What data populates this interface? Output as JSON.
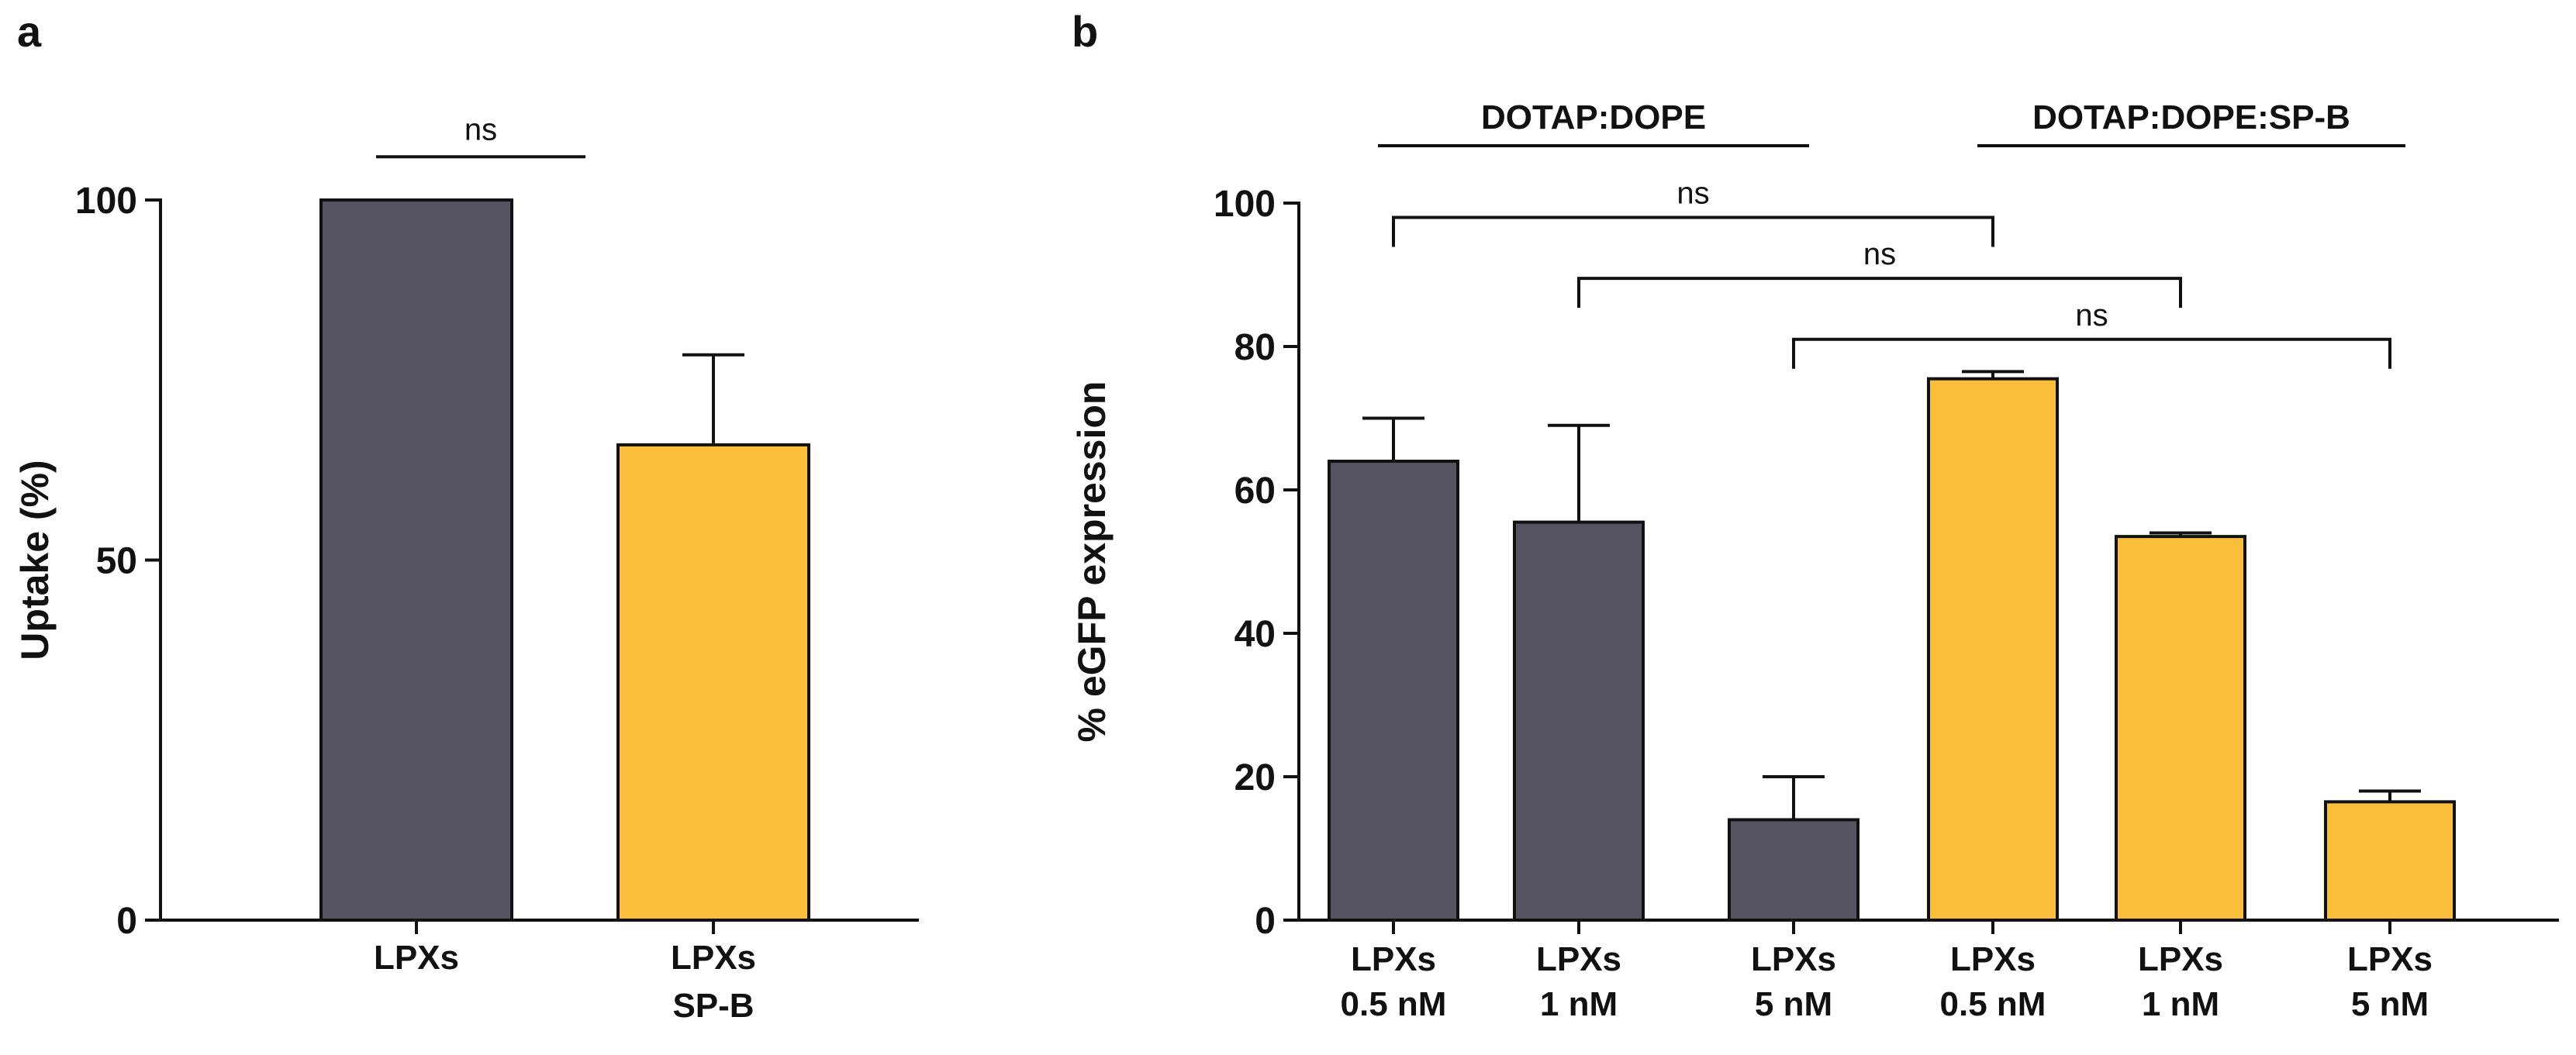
{
  "colors": {
    "dark": "#545460",
    "yellow": "#FBBE3A",
    "ink": "#111111"
  },
  "chart_data": [
    {
      "panel": "a",
      "type": "bar",
      "ylabel": "Uptake (%)",
      "ylim": [
        0,
        100
      ],
      "yticks": [
        "0",
        "50",
        "100"
      ],
      "categories": [
        [
          "LPXs"
        ],
        [
          "LPXs",
          "SP-B"
        ]
      ],
      "values": [
        100,
        66
      ],
      "errors": [
        0,
        12.5
      ],
      "bar_colors": [
        "dark",
        "yellow"
      ],
      "significance": [
        {
          "label": "ns",
          "from": 0,
          "to": 1,
          "level": 106
        }
      ]
    },
    {
      "panel": "b",
      "type": "bar",
      "ylabel": "% eGFP expression",
      "ylim": [
        0,
        100
      ],
      "yticks": [
        "0",
        "20",
        "40",
        "60",
        "80",
        "100"
      ],
      "categories": [
        [
          "LPXs",
          "0.5 nM"
        ],
        [
          "LPXs",
          "1 nM"
        ],
        [
          "LPXs",
          "5 nM"
        ],
        [
          "LPXs",
          "0.5 nM"
        ],
        [
          "LPXs",
          "1 nM"
        ],
        [
          "LPXs",
          "5 nM"
        ]
      ],
      "values": [
        64,
        55.5,
        14,
        75.5,
        53.5,
        16.5
      ],
      "errors": [
        6,
        13.5,
        6,
        1,
        0.5,
        1.5
      ],
      "bar_colors": [
        "dark",
        "dark",
        "dark",
        "yellow",
        "yellow",
        "yellow"
      ],
      "groups": [
        {
          "label": "DOTAP:DOPE",
          "from": 0,
          "to": 2
        },
        {
          "label": "DOTAP:DOPE:SP-B",
          "from": 3,
          "to": 5
        }
      ],
      "group_level": 108,
      "significance": [
        {
          "label": "ns",
          "from": 0,
          "to": 3,
          "level": 98
        },
        {
          "label": "ns",
          "from": 1,
          "to": 4,
          "level": 89.5
        },
        {
          "label": "ns",
          "from": 2,
          "to": 5,
          "level": 81
        }
      ]
    }
  ]
}
